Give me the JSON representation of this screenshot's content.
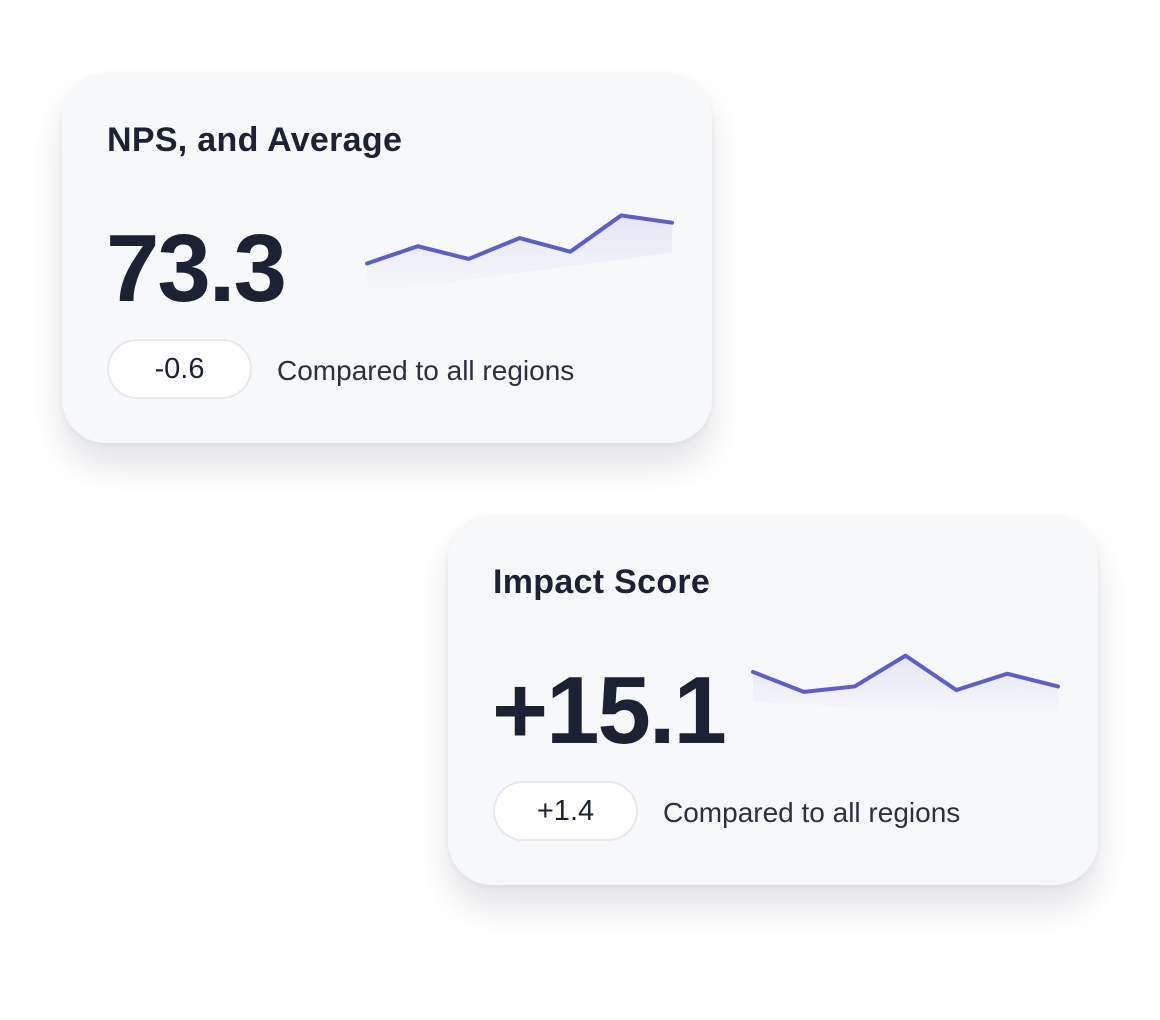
{
  "colors": {
    "line": "#5b5fc7",
    "text": "#1c2233",
    "card_bg": "#f7f8fa"
  },
  "cards": [
    {
      "title": "NPS, and Average",
      "value": "73.3",
      "delta": "-0.6",
      "compare_label": "Compared to all regions",
      "sparkline": [
        5,
        24,
        10,
        33,
        18,
        58,
        50
      ]
    },
    {
      "title": "Impact Score",
      "value": "+15.1",
      "delta": "+1.4",
      "compare_label": "Compared to all regions",
      "sparkline": [
        42,
        20,
        26,
        60,
        22,
        40,
        26
      ]
    }
  ]
}
